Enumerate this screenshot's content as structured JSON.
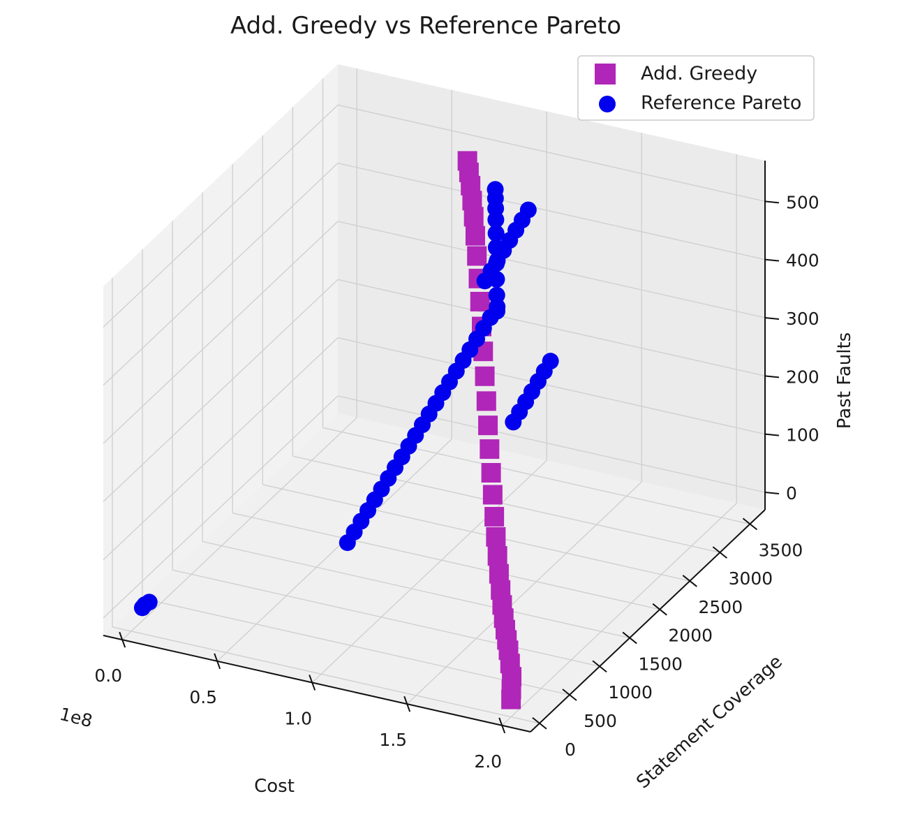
{
  "chart_data": {
    "type": "scatter",
    "projection": "3d",
    "title": "Add. Greedy vs Reference Pareto",
    "xlabel": "Cost",
    "ylabel": "Statement Coverage",
    "zlabel": "Past Faults",
    "x_offset_label": "1e8",
    "x_ticks": [
      "0.0",
      "0.5",
      "1.0",
      "1.5",
      "2.0"
    ],
    "y_ticks": [
      "0",
      "500",
      "1000",
      "1500",
      "2000",
      "2500",
      "3000",
      "3500"
    ],
    "z_ticks": [
      "0",
      "100",
      "200",
      "300",
      "400",
      "500"
    ],
    "xlim": [
      -0.1,
      2.15
    ],
    "ylim": [
      -150,
      3750
    ],
    "zlim": [
      -30,
      570
    ],
    "grid": true,
    "legend_position": "top-right",
    "series": [
      {
        "name": "Add. Greedy",
        "marker": "square",
        "color": "#b026b8",
        "points": [
          [
            2.0,
            0,
            0
          ],
          [
            1.97,
            100,
            5
          ],
          [
            1.94,
            200,
            15
          ],
          [
            1.9,
            300,
            25
          ],
          [
            1.86,
            400,
            35
          ],
          [
            1.82,
            500,
            40
          ],
          [
            1.78,
            600,
            45
          ],
          [
            1.74,
            700,
            52
          ],
          [
            1.7,
            800,
            62
          ],
          [
            1.66,
            900,
            75
          ],
          [
            1.62,
            1000,
            90
          ],
          [
            1.58,
            1100,
            108
          ],
          [
            1.54,
            1200,
            128
          ],
          [
            1.5,
            1300,
            150
          ],
          [
            1.46,
            1400,
            175
          ],
          [
            1.42,
            1500,
            200
          ],
          [
            1.38,
            1600,
            228
          ],
          [
            1.34,
            1700,
            256
          ],
          [
            1.3,
            1800,
            285
          ],
          [
            1.26,
            1900,
            315
          ],
          [
            1.22,
            2000,
            345
          ],
          [
            1.18,
            2100,
            375
          ],
          [
            1.14,
            2200,
            405
          ],
          [
            1.1,
            2300,
            432
          ],
          [
            1.06,
            2400,
            458
          ],
          [
            1.02,
            2500,
            480
          ],
          [
            0.98,
            2600,
            500
          ],
          [
            0.94,
            2700,
            515
          ],
          [
            0.9,
            2800,
            528
          ],
          [
            0.86,
            2900,
            538
          ],
          [
            0.82,
            3000,
            545
          ]
        ]
      },
      {
        "name": "Reference Pareto",
        "marker": "circle",
        "color": "#0000ee",
        "points": [
          [
            0.02,
            120,
            0
          ],
          [
            0.03,
            130,
            5
          ],
          [
            0.05,
            140,
            10
          ],
          [
            0.6,
            1700,
            0
          ],
          [
            0.62,
            1750,
            15
          ],
          [
            0.64,
            1800,
            30
          ],
          [
            0.66,
            1850,
            45
          ],
          [
            0.68,
            1900,
            60
          ],
          [
            0.7,
            1950,
            75
          ],
          [
            0.72,
            2000,
            90
          ],
          [
            0.74,
            2050,
            105
          ],
          [
            0.76,
            2100,
            120
          ],
          [
            0.78,
            2150,
            135
          ],
          [
            0.8,
            2200,
            150
          ],
          [
            0.82,
            2250,
            165
          ],
          [
            0.84,
            2300,
            180
          ],
          [
            0.86,
            2350,
            195
          ],
          [
            0.88,
            2400,
            210
          ],
          [
            0.9,
            2450,
            225
          ],
          [
            0.92,
            2500,
            240
          ],
          [
            0.94,
            2550,
            255
          ],
          [
            0.96,
            2600,
            270
          ],
          [
            0.98,
            2650,
            285
          ],
          [
            1.0,
            2700,
            300
          ],
          [
            1.02,
            2750,
            315
          ],
          [
            1.04,
            2800,
            330
          ],
          [
            0.95,
            2880,
            360
          ],
          [
            0.97,
            2920,
            375
          ],
          [
            0.99,
            2960,
            390
          ],
          [
            1.01,
            3000,
            405
          ],
          [
            1.03,
            3040,
            420
          ],
          [
            1.05,
            3080,
            435
          ],
          [
            1.07,
            3120,
            450
          ],
          [
            1.09,
            3160,
            465
          ],
          [
            1.6,
            1300,
            320
          ],
          [
            1.62,
            1340,
            335
          ],
          [
            1.64,
            1380,
            350
          ],
          [
            1.66,
            1420,
            365
          ],
          [
            1.68,
            1460,
            380
          ],
          [
            1.7,
            1500,
            395
          ],
          [
            1.72,
            1540,
            410
          ],
          [
            1.15,
            2450,
            365
          ],
          [
            1.13,
            2510,
            385
          ],
          [
            1.11,
            2570,
            405
          ],
          [
            1.09,
            2630,
            425
          ],
          [
            1.07,
            2690,
            445
          ],
          [
            1.05,
            2750,
            462
          ],
          [
            1.03,
            2810,
            478
          ],
          [
            1.01,
            2870,
            490
          ],
          [
            0.99,
            2930,
            500
          ],
          [
            0.97,
            2990,
            508
          ]
        ]
      }
    ]
  }
}
